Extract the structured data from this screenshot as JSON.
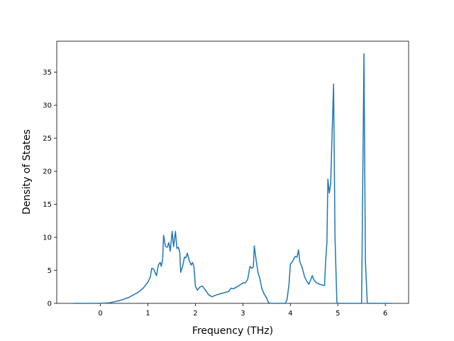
{
  "chart_data": {
    "type": "line",
    "xlabel": "Frequency (THz)",
    "ylabel": "Density of States",
    "xlim": [
      -0.92,
      6.49
    ],
    "ylim": [
      0,
      39.7
    ],
    "xticks": [
      0,
      1,
      2,
      3,
      4,
      5,
      6
    ],
    "yticks": [
      0,
      5,
      10,
      15,
      20,
      25,
      30,
      35
    ],
    "series": [
      {
        "color": "#1f77b4",
        "x": [
          -0.58,
          0,
          0.2,
          0.4,
          0.6,
          0.8,
          0.9,
          1.0,
          1.05,
          1.08,
          1.12,
          1.18,
          1.22,
          1.26,
          1.28,
          1.31,
          1.33,
          1.37,
          1.41,
          1.44,
          1.47,
          1.51,
          1.54,
          1.58,
          1.61,
          1.64,
          1.67,
          1.69,
          1.73,
          1.77,
          1.8,
          1.83,
          1.87,
          1.91,
          1.94,
          1.97,
          2.0,
          2.04,
          2.1,
          2.15,
          2.2,
          2.28,
          2.35,
          2.45,
          2.6,
          2.7,
          2.75,
          2.8,
          2.9,
          3.0,
          3.05,
          3.1,
          3.15,
          3.19,
          3.22,
          3.24,
          3.28,
          3.32,
          3.36,
          3.4,
          3.45,
          3.5,
          3.54,
          3.6,
          3.9,
          3.93,
          3.97,
          4.0,
          4.05,
          4.1,
          4.14,
          4.17,
          4.2,
          4.25,
          4.3,
          4.35,
          4.39,
          4.43,
          4.46,
          4.5,
          4.55,
          4.65,
          4.72,
          4.74,
          4.77,
          4.79,
          4.82,
          4.85,
          4.88,
          4.91,
          4.94,
          4.98,
          5.5,
          5.52,
          5.55,
          5.58,
          5.62,
          6.15
        ],
        "values": [
          0,
          0,
          0.1,
          0.4,
          0.9,
          1.7,
          2.3,
          3.2,
          4.0,
          5.3,
          5.2,
          4.2,
          5.8,
          6.2,
          5.6,
          6.6,
          10.3,
          8.6,
          8.5,
          9.2,
          7.9,
          10.9,
          8.6,
          10.9,
          8.3,
          8.5,
          7.8,
          4.7,
          5.6,
          7.0,
          6.9,
          7.6,
          6.5,
          5.8,
          6.2,
          5.5,
          2.6,
          2.0,
          2.5,
          2.6,
          2.1,
          1.3,
          1.0,
          1.3,
          1.6,
          1.8,
          2.3,
          2.2,
          2.6,
          3.1,
          3.1,
          3.6,
          5.6,
          5.3,
          5.5,
          8.7,
          6.5,
          4.6,
          3.7,
          2.2,
          1.4,
          0.8,
          0.1,
          0,
          0,
          0.6,
          2.8,
          5.9,
          6.4,
          7.1,
          7.0,
          8.1,
          6.3,
          5.4,
          4.0,
          3.3,
          2.9,
          3.6,
          4.2,
          3.5,
          3.1,
          2.8,
          2.7,
          6.0,
          9.3,
          18.8,
          16.7,
          18.2,
          26.0,
          33.2,
          10,
          0,
          0,
          15,
          37.8,
          6.5,
          0,
          0
        ]
      }
    ]
  }
}
